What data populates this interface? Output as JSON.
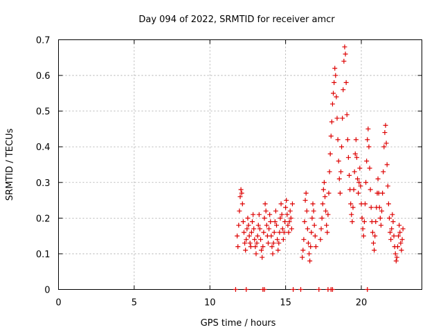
{
  "chart_data": {
    "type": "scatter",
    "title": "Day 094 of 2022, SRMTID for receiver amcr",
    "xlabel": "GPS time / hours",
    "ylabel": "SRMTID / TECUs",
    "xlim": [
      0,
      24
    ],
    "ylim": [
      0,
      0.7
    ],
    "xticks": [
      "0",
      "5",
      "10",
      "15",
      "20"
    ],
    "yticks": [
      "0",
      "0.1",
      "0.2",
      "0.3",
      "0.4",
      "0.5",
      "0.6",
      "0.7"
    ],
    "grid": true,
    "marker": "plus",
    "color": "#dd0000",
    "series": [
      {
        "name": "SRMTID",
        "points": [
          [
            11.8,
            0.15
          ],
          [
            11.85,
            0.12
          ],
          [
            11.9,
            0.18
          ],
          [
            11.95,
            0.22
          ],
          [
            12.0,
            0.26
          ],
          [
            12.05,
            0.28
          ],
          [
            12.1,
            0.27
          ],
          [
            12.15,
            0.24
          ],
          [
            12.2,
            0.19
          ],
          [
            12.25,
            0.16
          ],
          [
            12.3,
            0.13
          ],
          [
            12.35,
            0.11
          ],
          [
            12.4,
            0.14
          ],
          [
            12.45,
            0.17
          ],
          [
            12.5,
            0.2
          ],
          [
            12.55,
            0.18
          ],
          [
            12.6,
            0.15
          ],
          [
            12.65,
            0.13
          ],
          [
            12.7,
            0.12
          ],
          [
            12.75,
            0.16
          ],
          [
            12.8,
            0.19
          ],
          [
            12.85,
            0.21
          ],
          [
            12.9,
            0.17
          ],
          [
            12.95,
            0.14
          ],
          [
            13.0,
            0.12
          ],
          [
            13.05,
            0.1
          ],
          [
            13.1,
            0.13
          ],
          [
            13.15,
            0.15
          ],
          [
            13.2,
            0.18
          ],
          [
            13.25,
            0.21
          ],
          [
            13.3,
            0.17
          ],
          [
            13.35,
            0.14
          ],
          [
            13.4,
            0.11
          ],
          [
            13.45,
            0.09
          ],
          [
            13.5,
            0.12
          ],
          [
            13.55,
            0.16
          ],
          [
            13.6,
            0.2
          ],
          [
            13.65,
            0.24
          ],
          [
            13.7,
            0.22
          ],
          [
            13.75,
            0.18
          ],
          [
            13.8,
            0.15
          ],
          [
            13.85,
            0.13
          ],
          [
            13.9,
            0.17
          ],
          [
            13.95,
            0.21
          ],
          [
            14.0,
            0.19
          ],
          [
            14.05,
            0.15
          ],
          [
            14.1,
            0.12
          ],
          [
            14.15,
            0.1
          ],
          [
            14.2,
            0.13
          ],
          [
            14.25,
            0.16
          ],
          [
            14.3,
            0.19
          ],
          [
            14.35,
            0.22
          ],
          [
            14.4,
            0.18
          ],
          [
            14.45,
            0.14
          ],
          [
            14.5,
            0.11
          ],
          [
            14.55,
            0.13
          ],
          [
            14.6,
            0.16
          ],
          [
            14.65,
            0.2
          ],
          [
            14.7,
            0.24
          ],
          [
            14.75,
            0.21
          ],
          [
            14.8,
            0.17
          ],
          [
            14.85,
            0.14
          ],
          [
            14.9,
            0.16
          ],
          [
            14.95,
            0.19
          ],
          [
            15.0,
            0.23
          ],
          [
            15.05,
            0.25
          ],
          [
            15.1,
            0.21
          ],
          [
            15.15,
            0.18
          ],
          [
            15.2,
            0.16
          ],
          [
            15.25,
            0.19
          ],
          [
            15.3,
            0.22
          ],
          [
            15.35,
            0.2
          ],
          [
            15.4,
            0.17
          ],
          [
            15.45,
            0.24
          ],
          [
            16.1,
            0.09
          ],
          [
            16.15,
            0.11
          ],
          [
            16.2,
            0.14
          ],
          [
            16.25,
            0.19
          ],
          [
            16.3,
            0.25
          ],
          [
            16.35,
            0.27
          ],
          [
            16.4,
            0.22
          ],
          [
            16.45,
            0.17
          ],
          [
            16.5,
            0.13
          ],
          [
            16.55,
            0.1
          ],
          [
            16.6,
            0.08
          ],
          [
            16.65,
            0.12
          ],
          [
            16.7,
            0.16
          ],
          [
            16.75,
            0.2
          ],
          [
            16.8,
            0.24
          ],
          [
            16.85,
            0.22
          ],
          [
            16.9,
            0.18
          ],
          [
            16.95,
            0.15
          ],
          [
            17.0,
            0.12
          ],
          [
            17.3,
            0.14
          ],
          [
            17.35,
            0.17
          ],
          [
            17.4,
            0.2
          ],
          [
            17.45,
            0.24
          ],
          [
            17.5,
            0.28
          ],
          [
            17.55,
            0.3
          ],
          [
            17.6,
            0.26
          ],
          [
            17.65,
            0.22
          ],
          [
            17.7,
            0.18
          ],
          [
            17.75,
            0.16
          ],
          [
            17.8,
            0.21
          ],
          [
            17.85,
            0.27
          ],
          [
            17.9,
            0.33
          ],
          [
            17.95,
            0.38
          ],
          [
            18.0,
            0.43
          ],
          [
            18.05,
            0.47
          ],
          [
            18.1,
            0.52
          ],
          [
            18.15,
            0.55
          ],
          [
            18.2,
            0.58
          ],
          [
            18.25,
            0.62
          ],
          [
            18.3,
            0.6
          ],
          [
            18.35,
            0.54
          ],
          [
            18.4,
            0.48
          ],
          [
            18.45,
            0.42
          ],
          [
            18.5,
            0.36
          ],
          [
            18.55,
            0.31
          ],
          [
            18.6,
            0.27
          ],
          [
            18.65,
            0.33
          ],
          [
            18.7,
            0.4
          ],
          [
            18.75,
            0.48
          ],
          [
            18.8,
            0.56
          ],
          [
            18.85,
            0.64
          ],
          [
            18.9,
            0.68
          ],
          [
            18.95,
            0.66
          ],
          [
            19.0,
            0.58
          ],
          [
            19.05,
            0.49
          ],
          [
            19.1,
            0.42
          ],
          [
            19.15,
            0.37
          ],
          [
            19.2,
            0.32
          ],
          [
            19.25,
            0.28
          ],
          [
            19.3,
            0.24
          ],
          [
            19.35,
            0.21
          ],
          [
            19.4,
            0.19
          ],
          [
            19.45,
            0.23
          ],
          [
            19.5,
            0.28
          ],
          [
            19.55,
            0.33
          ],
          [
            19.6,
            0.38
          ],
          [
            19.65,
            0.42
          ],
          [
            19.7,
            0.37
          ],
          [
            19.75,
            0.31
          ],
          [
            19.8,
            0.27
          ],
          [
            19.85,
            0.3
          ],
          [
            19.9,
            0.34
          ],
          [
            19.95,
            0.29
          ],
          [
            20.0,
            0.24
          ],
          [
            20.05,
            0.2
          ],
          [
            20.1,
            0.17
          ],
          [
            20.15,
            0.15
          ],
          [
            20.2,
            0.19
          ],
          [
            20.25,
            0.24
          ],
          [
            20.3,
            0.3
          ],
          [
            20.35,
            0.36
          ],
          [
            20.4,
            0.42
          ],
          [
            20.45,
            0.45
          ],
          [
            20.5,
            0.4
          ],
          [
            20.55,
            0.34
          ],
          [
            20.6,
            0.28
          ],
          [
            20.65,
            0.23
          ],
          [
            20.7,
            0.19
          ],
          [
            20.75,
            0.16
          ],
          [
            20.8,
            0.13
          ],
          [
            20.85,
            0.11
          ],
          [
            20.9,
            0.15
          ],
          [
            20.95,
            0.19
          ],
          [
            21.0,
            0.23
          ],
          [
            21.05,
            0.27
          ],
          [
            21.1,
            0.31
          ],
          [
            21.15,
            0.27
          ],
          [
            21.2,
            0.23
          ],
          [
            21.25,
            0.2
          ],
          [
            21.3,
            0.18
          ],
          [
            21.35,
            0.22
          ],
          [
            21.4,
            0.27
          ],
          [
            21.45,
            0.33
          ],
          [
            21.5,
            0.4
          ],
          [
            21.55,
            0.44
          ],
          [
            21.6,
            0.46
          ],
          [
            21.65,
            0.41
          ],
          [
            21.7,
            0.35
          ],
          [
            21.75,
            0.29
          ],
          [
            21.8,
            0.24
          ],
          [
            21.85,
            0.2
          ],
          [
            21.9,
            0.16
          ],
          [
            21.95,
            0.14
          ],
          [
            22.0,
            0.17
          ],
          [
            22.05,
            0.21
          ],
          [
            22.1,
            0.19
          ],
          [
            22.15,
            0.15
          ],
          [
            22.2,
            0.12
          ],
          [
            22.25,
            0.1
          ],
          [
            22.3,
            0.08
          ],
          [
            22.35,
            0.09
          ],
          [
            22.4,
            0.12
          ],
          [
            22.45,
            0.15
          ],
          [
            22.5,
            0.18
          ],
          [
            22.55,
            0.16
          ],
          [
            22.6,
            0.13
          ],
          [
            22.65,
            0.11
          ],
          [
            22.7,
            0.14
          ],
          [
            22.75,
            0.17
          ],
          [
            11.7,
            0.0
          ],
          [
            12.4,
            0.0
          ],
          [
            13.5,
            0.0
          ],
          [
            13.6,
            0.0
          ],
          [
            15.5,
            0.0
          ],
          [
            16.0,
            0.0
          ],
          [
            17.2,
            0.0
          ],
          [
            17.8,
            0.0
          ],
          [
            18.0,
            0.0
          ],
          [
            18.1,
            0.0
          ],
          [
            20.4,
            0.0
          ]
        ]
      }
    ]
  }
}
